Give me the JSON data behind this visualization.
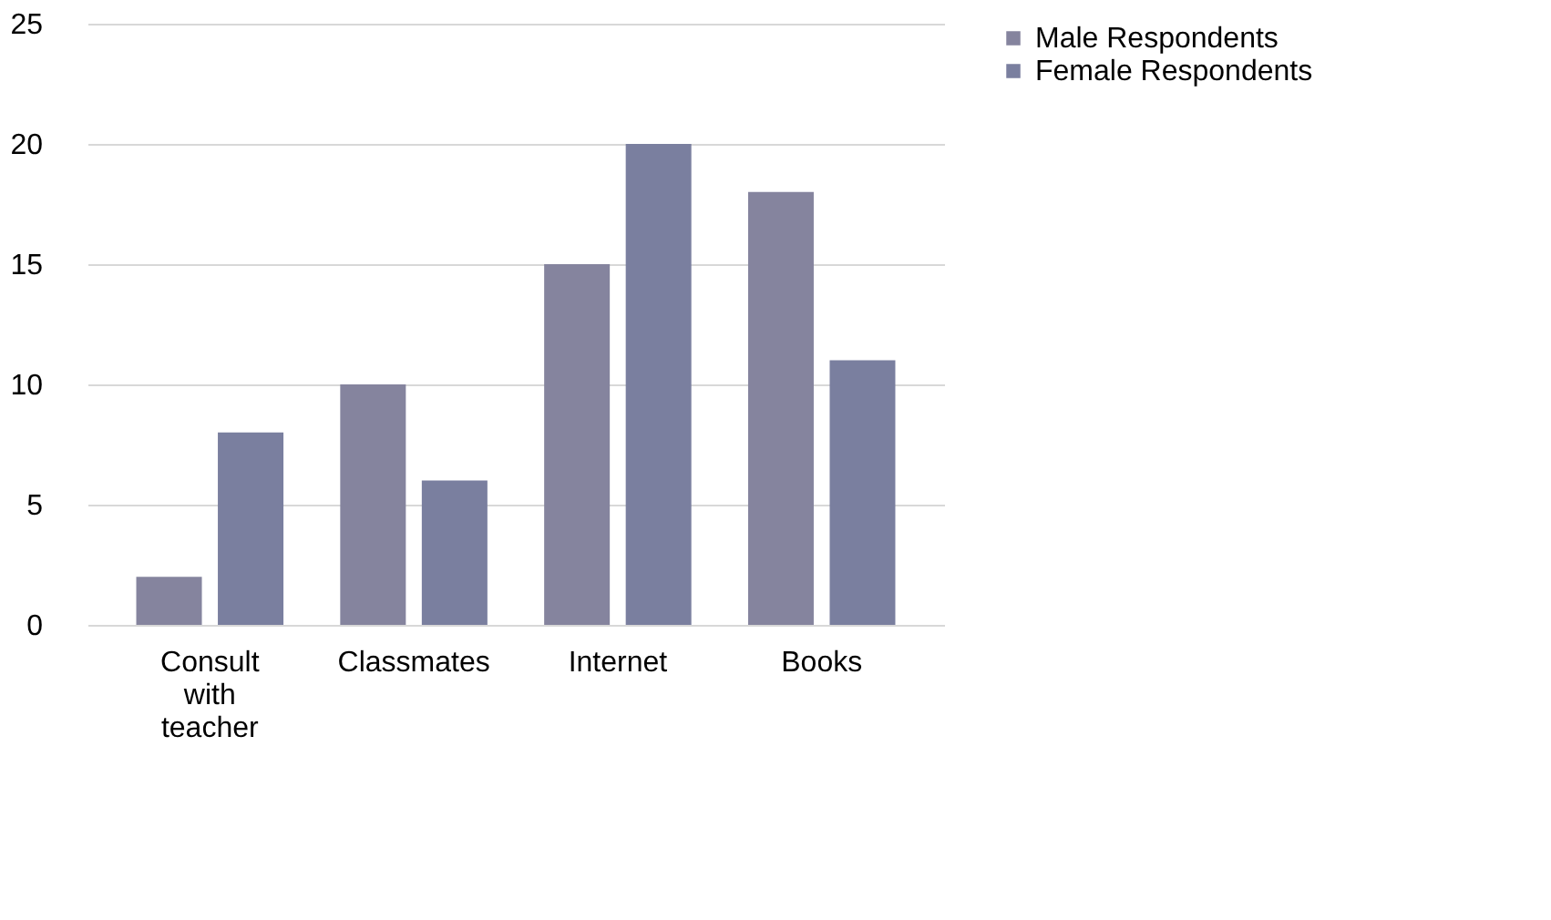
{
  "chart_data": {
    "type": "bar",
    "categories": [
      "Consult with teacher",
      "Classmates",
      "Internet",
      "Books"
    ],
    "series": [
      {
        "name": "Male Respondents",
        "color": "#85849e",
        "values": [
          2,
          10,
          15,
          18
        ]
      },
      {
        "name": "Female Respondents",
        "color": "#7a7f9f",
        "values": [
          8,
          6,
          20,
          11
        ]
      }
    ],
    "ylim": [
      0,
      25
    ],
    "yticks": [
      0,
      5,
      10,
      15,
      20,
      25
    ],
    "grid": "y",
    "legend": "right"
  }
}
